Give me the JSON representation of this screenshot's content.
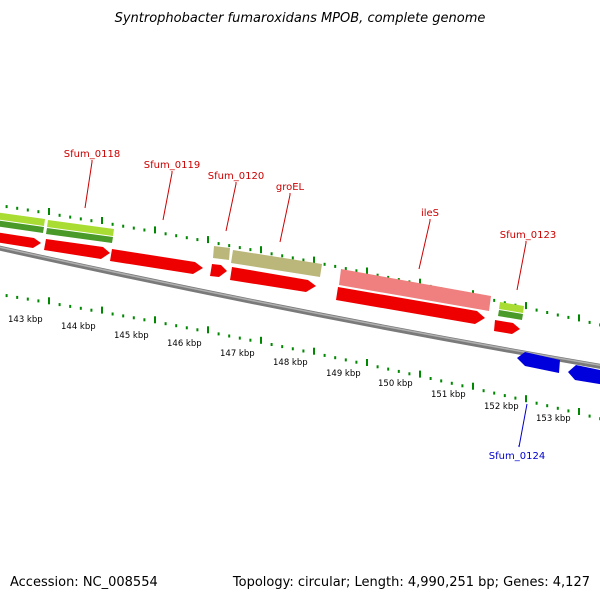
{
  "title": "Syntrophobacter fumaroxidans MPOB, complete genome",
  "footer": {
    "accession": "Accession: NC_008554",
    "summary": "Topology: circular; Length: 4,990,251 bp; Genes: 4,127"
  },
  "colors": {
    "forward_cds": "#ff0000",
    "reverse_cds": "#0000ff",
    "orthology_green": "#66cc00",
    "orthology_olive": "#bbb77a",
    "orthology_pink": "#f08080",
    "tick_green": "#008800",
    "label_red": "#cc0000",
    "label_blue": "#0000cc",
    "backbone": "#888888"
  },
  "kbp_ticks": [
    "143 kbp",
    "144 kbp",
    "145 kbp",
    "146 kbp",
    "147 kbp",
    "148 kbp",
    "149 kbp",
    "150 kbp",
    "151 kbp",
    "152 kbp",
    "153 kbp"
  ],
  "gene_labels": [
    {
      "name": "Sfum_0118",
      "strand": "forward"
    },
    {
      "name": "Sfum_0119",
      "strand": "forward"
    },
    {
      "name": "Sfum_0120",
      "strand": "forward"
    },
    {
      "name": "groEL",
      "strand": "forward"
    },
    {
      "name": "ileS",
      "strand": "forward"
    },
    {
      "name": "Sfum_0123",
      "strand": "forward"
    },
    {
      "name": "Sfum_0124",
      "strand": "reverse"
    }
  ]
}
